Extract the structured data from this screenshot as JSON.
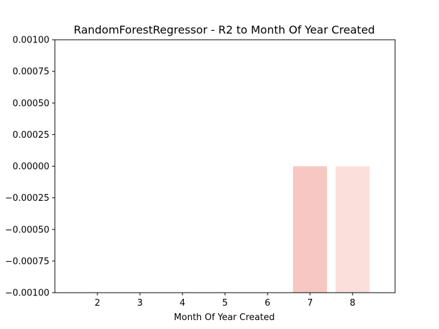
{
  "chart_data": {
    "type": "bar",
    "title": "RandomForestRegressor - R2 to Month Of Year Created",
    "xlabel": "Month Of Year Created",
    "ylabel": "",
    "x_ticks": [
      "2",
      "3",
      "4",
      "5",
      "6",
      "7",
      "8"
    ],
    "xlim": [
      1,
      9
    ],
    "ylim": [
      -0.001,
      0.001
    ],
    "y_ticks": [
      -0.001,
      -0.00075,
      -0.0005,
      -0.00025,
      0.0,
      0.00025,
      0.0005,
      0.00075,
      0.001
    ],
    "y_tick_labels": [
      "−0.00100",
      "−0.00075",
      "−0.00050",
      "−0.00025",
      "0.00000",
      "0.00025",
      "0.00050",
      "0.00075",
      "0.00100"
    ],
    "bar_width": 0.8,
    "grid": false,
    "legend": "none",
    "bars": [
      {
        "x": 7,
        "value": 0.0,
        "color": "#f6c8c1"
      },
      {
        "x": 8,
        "value": 0.0,
        "color": "#fadfda"
      }
    ]
  }
}
